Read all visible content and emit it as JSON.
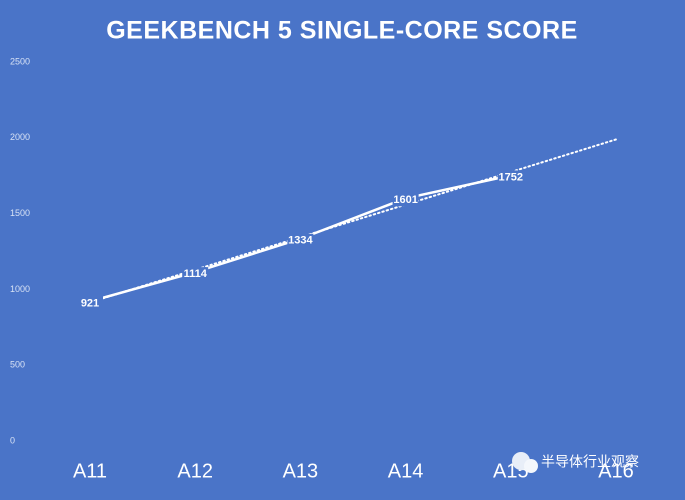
{
  "chart_data": {
    "type": "line",
    "title": "GEEKBENCH 5 SINGLE-CORE SCORE",
    "categories": [
      "A11",
      "A12",
      "A13",
      "A14",
      "A15",
      "A16"
    ],
    "values": [
      921,
      1114,
      1334,
      1601,
      1752,
      null
    ],
    "color": "#ffffff",
    "ylim": [
      0,
      2500
    ],
    "yticks": [
      0,
      500,
      1000,
      1500,
      2000,
      2500
    ],
    "trendline": "linear",
    "drop_lines": true,
    "data_labels": true,
    "watermark": "半导体行业观察"
  }
}
